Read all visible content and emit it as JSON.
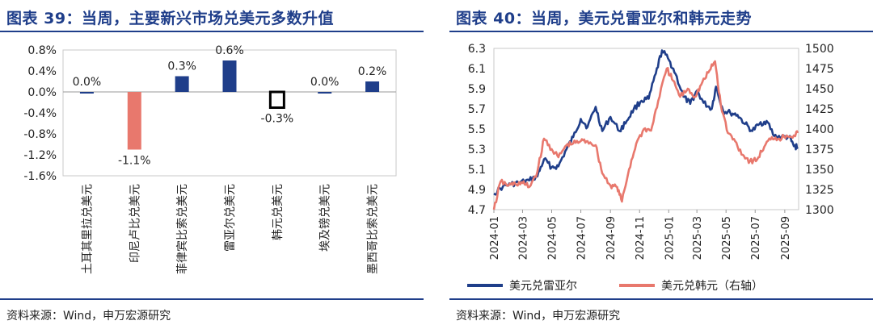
{
  "left_panel": {
    "title": "图表 39：当周，主要新兴市场兑美元多数升值",
    "source": "资料来源：Wind，申万宏源研究"
  },
  "right_panel": {
    "title": "图表 40：当周，美元兑雷亚尔和韩元走势",
    "source": "资料来源：Wind，申万宏源研究"
  },
  "colors": {
    "navy": "#1f3e8a",
    "salmon": "#e8786d",
    "frame": "#c9c9c9"
  },
  "chart_data": [
    {
      "type": "bar",
      "categories": [
        "土耳其里拉兑美元",
        "印尼卢比兑美元",
        "菲律宾比索兑美元",
        "雷亚尔兑美元",
        "韩元兑美元",
        "埃及镑兑美元",
        "墨西哥比索兑美元"
      ],
      "values": [
        0.0,
        -1.1,
        0.3,
        0.6,
        -0.3,
        0.0,
        0.2
      ],
      "data_labels": [
        "0.0%",
        "-1.1%",
        "0.3%",
        "0.6%",
        "-0.3%",
        "0.0%",
        "0.2%"
      ],
      "bar_colors": [
        "#1f3e8a",
        "#e8786d",
        "#1f3e8a",
        "#1f3e8a",
        "#ffffff",
        "#1f3e8a",
        "#1f3e8a"
      ],
      "y_ticks": [
        "0.8%",
        "0.4%",
        "0.0%",
        "-0.4%",
        "-0.8%",
        "-1.2%",
        "-1.6%"
      ],
      "ylim": [
        -1.6,
        0.8
      ],
      "grid": false
    },
    {
      "type": "line",
      "x_ticks": [
        "2024-01",
        "2024-03",
        "2024-05",
        "2024-07",
        "2024-09",
        "2024-11",
        "2025-01",
        "2025-03",
        "2025-05",
        "2025-07",
        "2025-09"
      ],
      "xlim": [
        "2024-01-01",
        "2025-09-30"
      ],
      "y_left_ticks": [
        "6.3",
        "6.1",
        "5.9",
        "5.7",
        "5.5",
        "5.3",
        "5.1",
        "4.9",
        "4.7"
      ],
      "y_left_lim": [
        4.7,
        6.3
      ],
      "y_right_ticks": [
        "1500",
        "1475",
        "1450",
        "1425",
        "1400",
        "1375",
        "1350",
        "1325",
        "1300"
      ],
      "y_right_lim": [
        1300,
        1500
      ],
      "legend_position": "bottom",
      "grid": false,
      "series": [
        {
          "name": "美元兑雷亚尔",
          "axis": "left",
          "color": "#1f3e8a",
          "points": [
            [
              "2024-01-01",
              4.86
            ],
            [
              "2024-01-20",
              4.93
            ],
            [
              "2024-02-05",
              4.95
            ],
            [
              "2024-02-25",
              4.97
            ],
            [
              "2024-03-15",
              4.99
            ],
            [
              "2024-04-01",
              5.03
            ],
            [
              "2024-04-15",
              5.2
            ],
            [
              "2024-05-01",
              5.12
            ],
            [
              "2024-05-15",
              5.13
            ],
            [
              "2024-06-01",
              5.3
            ],
            [
              "2024-06-15",
              5.42
            ],
            [
              "2024-07-01",
              5.6
            ],
            [
              "2024-07-15",
              5.52
            ],
            [
              "2024-08-01",
              5.72
            ],
            [
              "2024-08-15",
              5.48
            ],
            [
              "2024-09-01",
              5.62
            ],
            [
              "2024-09-20",
              5.48
            ],
            [
              "2024-10-05",
              5.58
            ],
            [
              "2024-10-20",
              5.7
            ],
            [
              "2024-11-05",
              5.78
            ],
            [
              "2024-11-20",
              5.8
            ],
            [
              "2024-12-05",
              6.05
            ],
            [
              "2024-12-18",
              6.28
            ],
            [
              "2025-01-02",
              6.18
            ],
            [
              "2025-01-15",
              6.05
            ],
            [
              "2025-02-01",
              5.82
            ],
            [
              "2025-02-15",
              5.75
            ],
            [
              "2025-03-01",
              5.88
            ],
            [
              "2025-03-15",
              5.76
            ],
            [
              "2025-04-01",
              5.7
            ],
            [
              "2025-04-10",
              5.92
            ],
            [
              "2025-04-25",
              5.68
            ],
            [
              "2025-05-10",
              5.66
            ],
            [
              "2025-05-25",
              5.64
            ],
            [
              "2025-06-10",
              5.55
            ],
            [
              "2025-06-25",
              5.48
            ],
            [
              "2025-07-10",
              5.55
            ],
            [
              "2025-07-25",
              5.58
            ],
            [
              "2025-08-10",
              5.43
            ],
            [
              "2025-08-25",
              5.42
            ],
            [
              "2025-09-10",
              5.42
            ],
            [
              "2025-09-20",
              5.33
            ],
            [
              "2025-09-28",
              5.32
            ]
          ]
        },
        {
          "name": "美元兑韩元（右轴）",
          "axis": "right",
          "color": "#e8786d",
          "points": [
            [
              "2024-01-01",
              1300
            ],
            [
              "2024-01-15",
              1335
            ],
            [
              "2024-02-01",
              1330
            ],
            [
              "2024-02-15",
              1332
            ],
            [
              "2024-03-01",
              1333
            ],
            [
              "2024-03-15",
              1328
            ],
            [
              "2024-04-01",
              1347
            ],
            [
              "2024-04-15",
              1388
            ],
            [
              "2024-05-01",
              1375
            ],
            [
              "2024-05-15",
              1365
            ],
            [
              "2024-06-01",
              1380
            ],
            [
              "2024-06-15",
              1382
            ],
            [
              "2024-07-01",
              1385
            ],
            [
              "2024-07-15",
              1385
            ],
            [
              "2024-08-01",
              1380
            ],
            [
              "2024-08-15",
              1345
            ],
            [
              "2024-09-01",
              1330
            ],
            [
              "2024-09-15",
              1328
            ],
            [
              "2024-09-25",
              1310
            ],
            [
              "2024-10-10",
              1350
            ],
            [
              "2024-10-25",
              1382
            ],
            [
              "2024-11-10",
              1400
            ],
            [
              "2024-11-25",
              1398
            ],
            [
              "2024-12-10",
              1435
            ],
            [
              "2024-12-28",
              1475
            ],
            [
              "2025-01-10",
              1460
            ],
            [
              "2025-01-25",
              1440
            ],
            [
              "2025-02-10",
              1450
            ],
            [
              "2025-02-25",
              1440
            ],
            [
              "2025-03-10",
              1455
            ],
            [
              "2025-03-25",
              1470
            ],
            [
              "2025-04-08",
              1484
            ],
            [
              "2025-04-20",
              1430
            ],
            [
              "2025-05-05",
              1395
            ],
            [
              "2025-05-20",
              1385
            ],
            [
              "2025-06-05",
              1368
            ],
            [
              "2025-06-20",
              1360
            ],
            [
              "2025-07-05",
              1362
            ],
            [
              "2025-07-20",
              1378
            ],
            [
              "2025-08-05",
              1390
            ],
            [
              "2025-08-20",
              1388
            ],
            [
              "2025-09-05",
              1392
            ],
            [
              "2025-09-20",
              1392
            ],
            [
              "2025-09-28",
              1395
            ]
          ]
        }
      ]
    }
  ]
}
